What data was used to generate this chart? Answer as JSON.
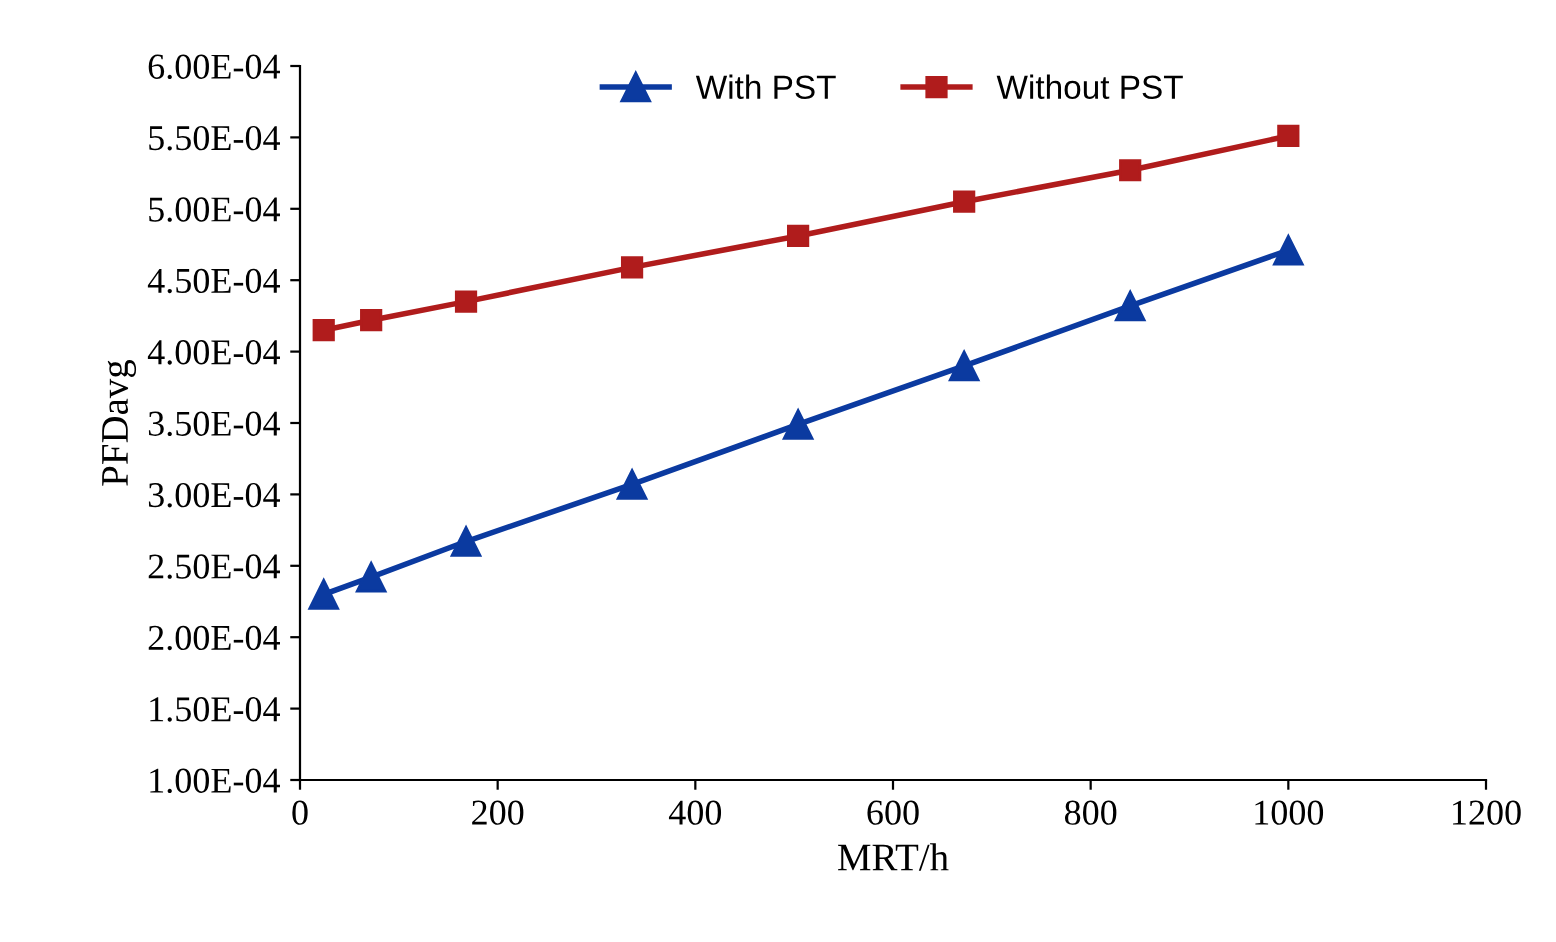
{
  "chart_data": {
    "type": "line",
    "xlabel": "MRT/h",
    "ylabel": "PFDavg",
    "x": [
      24,
      72,
      168,
      336,
      504,
      672,
      840,
      1000
    ],
    "series": [
      {
        "name": "With PST",
        "color": "#0b3aa0",
        "marker": "triangle",
        "values": [
          0.00023,
          0.000242,
          0.000267,
          0.000307,
          0.000349,
          0.00039,
          0.000432,
          0.000471
        ]
      },
      {
        "name": "Without PST",
        "color": "#b01c1c",
        "marker": "square",
        "values": [
          0.000415,
          0.000422,
          0.000435,
          0.000459,
          0.000481,
          0.000505,
          0.000527,
          0.000551
        ]
      }
    ],
    "xlim": [
      0,
      1200
    ],
    "xticks": [
      0,
      200,
      400,
      600,
      800,
      1000,
      1200
    ],
    "ylim": [
      0.0001,
      0.0006
    ],
    "yticks": [
      {
        "value": 0.0001,
        "label": "1.00E-04"
      },
      {
        "value": 0.00015,
        "label": "1.50E-04"
      },
      {
        "value": 0.0002,
        "label": "2.00E-04"
      },
      {
        "value": 0.00025,
        "label": "2.50E-04"
      },
      {
        "value": 0.0003,
        "label": "3.00E-04"
      },
      {
        "value": 0.00035,
        "label": "3.50E-04"
      },
      {
        "value": 0.0004,
        "label": "4.00E-04"
      },
      {
        "value": 0.00045,
        "label": "4.50E-04"
      },
      {
        "value": 0.0005,
        "label": "5.00E-04"
      },
      {
        "value": 0.00055,
        "label": "5.50E-04"
      },
      {
        "value": 0.0006,
        "label": "6.00E-04"
      }
    ],
    "grid": false,
    "legend": "top",
    "line_style": "solid"
  }
}
